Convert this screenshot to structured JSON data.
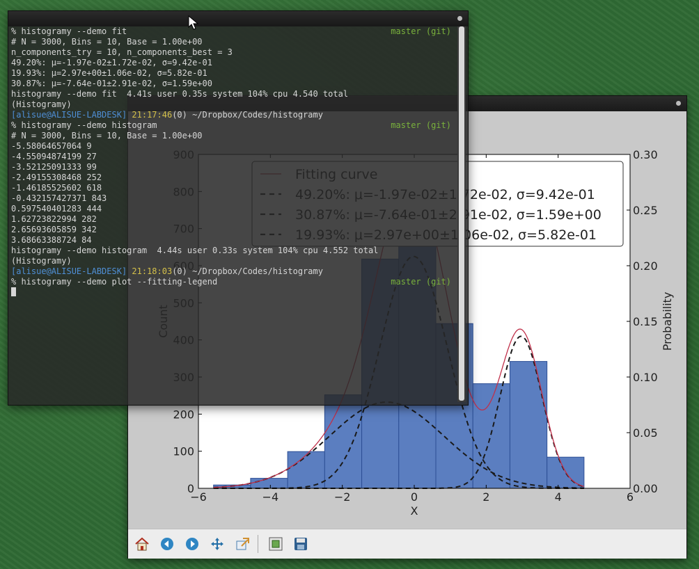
{
  "terminal": {
    "lines": [
      {
        "text": "% histogramy --demo fit",
        "right": "master (git)"
      },
      {
        "text": "# N = 3000, Bins = 10, Base = 1.00e+00"
      },
      {
        "text": "n_components_try = 10, n_components_best = 3"
      },
      {
        "text": "49.20%: μ=-1.97e-02±1.72e-02, σ=9.42e-01"
      },
      {
        "text": "19.93%: μ=2.97e+00±1.06e-02, σ=5.82e-01"
      },
      {
        "text": "30.87%: μ=-7.64e-01±2.91e-02, σ=1.59e+00"
      },
      {
        "text": "histogramy --demo fit  4.41s user 0.35s system 104% cpu 4.540 total"
      },
      {
        "text": "(Histogramy)"
      },
      {
        "prompt": true,
        "user": "[alisue@ALISUE-LABDESK]",
        "time": "21:17:46",
        "rest": "(0) ~/Dropbox/Codes/histogramy"
      },
      {
        "text": "% histogramy --demo histogram",
        "right": "master (git)"
      },
      {
        "text": "# N = 3000, Bins = 10, Base = 1.00e+00"
      },
      {
        "text": "-5.58064657064 9"
      },
      {
        "text": "-4.55094874199 27"
      },
      {
        "text": "-3.52125091333 99"
      },
      {
        "text": "-2.49155308468 252"
      },
      {
        "text": "-1.46185525602 618"
      },
      {
        "text": "-0.432157427371 843"
      },
      {
        "text": "0.597540401283 444"
      },
      {
        "text": "1.62723822994 282"
      },
      {
        "text": "2.65693605859 342"
      },
      {
        "text": "3.68663388724 84"
      },
      {
        "text": "histogramy --demo histogram  4.44s user 0.33s system 104% cpu 4.552 total"
      },
      {
        "text": "(Histogramy)"
      },
      {
        "prompt": true,
        "user": "[alisue@ALISUE-LABDESK]",
        "time": "21:18:03",
        "rest": "(0) ~/Dropbox/Codes/histogramy"
      },
      {
        "text": "% histogramy --demo plot --fitting-legend",
        "right": "master (git)"
      },
      {
        "cursor": true
      }
    ]
  },
  "colors": {
    "bar_fill": "#5b7ec0",
    "bar_edge": "#2d4f95",
    "fit_curve": "#c0304a",
    "component": "#1a1a1a",
    "git_green": "#7ab23c"
  },
  "toolbar": {
    "icons": [
      "home-icon",
      "back-arrow-icon",
      "forward-arrow-icon",
      "pan-icon",
      "zoom-icon",
      "subplots-icon",
      "save-icon"
    ]
  },
  "chart_data": {
    "type": "bar",
    "title": "",
    "xlabel": "X",
    "ylabel": "Count",
    "y2label": "Probability",
    "xlim": [
      -6,
      6
    ],
    "ylim": [
      0,
      900
    ],
    "y2lim": [
      0,
      0.3
    ],
    "x_ticks": [
      "−6",
      "−4",
      "−2",
      "0",
      "2",
      "4",
      "6"
    ],
    "y_ticks": [
      "0",
      "100",
      "200",
      "300",
      "400",
      "500",
      "600",
      "700",
      "800",
      "900"
    ],
    "y2_ticks": [
      "0.00",
      "0.05",
      "0.10",
      "0.15",
      "0.20",
      "0.25",
      "0.30"
    ],
    "bin_edges": [
      -5.58,
      -4.55,
      -3.52,
      -2.49,
      -1.46,
      -0.43,
      0.6,
      1.63,
      2.66,
      3.69,
      4.72
    ],
    "counts": [
      9,
      27,
      99,
      252,
      618,
      843,
      444,
      282,
      342,
      84
    ],
    "components": [
      {
        "weight": 0.492,
        "mu": -0.0197,
        "sigma": 0.942
      },
      {
        "weight": 0.3087,
        "mu": -0.764,
        "sigma": 1.59
      },
      {
        "weight": 0.1993,
        "mu": 2.97,
        "sigma": 0.582
      }
    ],
    "legend": [
      {
        "label": "Fitting curve",
        "style": "solid"
      },
      {
        "label": "49.20%: μ=-1.97e-02±1.72e-02, σ=9.42e-01",
        "style": "dashed"
      },
      {
        "label": "30.87%: μ=-7.64e-01±2.91e-02, σ=1.59e+00",
        "style": "dashed"
      },
      {
        "label": "19.93%: μ=2.97e+00±1.06e-02, σ=5.82e-01",
        "style": "dashed"
      }
    ],
    "legend_position": "upper-right"
  }
}
